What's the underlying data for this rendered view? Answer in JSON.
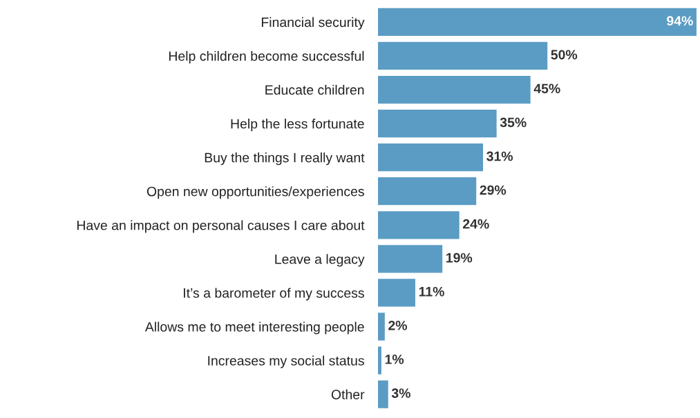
{
  "chart_data": {
    "type": "bar",
    "orientation": "horizontal",
    "categories": [
      "Financial security",
      "Help children become successful",
      "Educate children",
      "Help the less fortunate",
      "Buy the things I really want",
      "Open new opportunities/experiences",
      "Have an impact on personal causes I care about",
      "Leave a legacy",
      "It’s a barometer of my success",
      "Allows me to meet interesting people",
      "Increases my social status",
      "Other"
    ],
    "values": [
      94,
      50,
      45,
      35,
      31,
      29,
      24,
      19,
      11,
      2,
      1,
      3
    ],
    "value_labels": [
      "94%",
      "50%",
      "45%",
      "35%",
      "31%",
      "29%",
      "24%",
      "19%",
      "11%",
      "2%",
      "1%",
      "3%"
    ],
    "color": "#5b9cc4",
    "grid": false,
    "legend": false
  }
}
